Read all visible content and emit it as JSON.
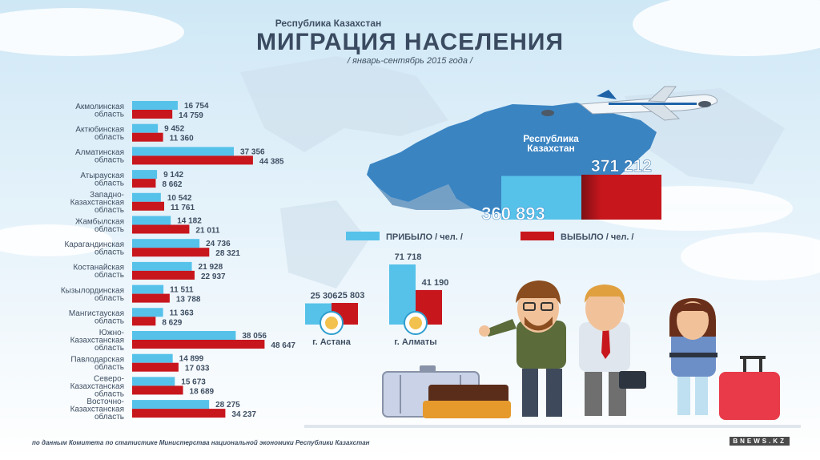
{
  "header": {
    "kicker": "Республика Казахстан",
    "title": "МИГРАЦИЯ НАСЕЛЕНИЯ",
    "subtitle": "/ январь-сентябрь 2015 года /"
  },
  "footnote": "по данным Комитета по статистике Министерства национальной экономики Республики Казахстан",
  "logo_text": "BNEWS.KZ",
  "colors": {
    "arrived": "#56c2ea",
    "departed": "#c8161d",
    "sky": "#dbeef8",
    "text": "#3f4f63"
  },
  "legend": {
    "arrived": "ПРИБЫЛО / чел. /",
    "departed": "ВЫБЫЛО / чел. /"
  },
  "chart_data": [
    {
      "type": "bar",
      "orientation": "horizontal",
      "categories": [
        [
          "Акмолинская",
          "область"
        ],
        [
          "Актюбинская",
          "область"
        ],
        [
          "Алматинская",
          "область"
        ],
        [
          "Атырауская",
          "область"
        ],
        [
          "Западно-",
          "Казахстанская",
          "область"
        ],
        [
          "Жамбылская",
          "область"
        ],
        [
          "Карагандинская",
          "область"
        ],
        [
          "Костанайская",
          "область"
        ],
        [
          "Кызылординская",
          "область"
        ],
        [
          "Мангистауская",
          "область"
        ],
        [
          "Южно-",
          "Казахстанская",
          "область"
        ],
        [
          "Павлодарская",
          "область"
        ],
        [
          "Северо-",
          "Казахстанская",
          "область"
        ],
        [
          "Восточно-",
          "Казахстанская",
          "область"
        ]
      ],
      "series": [
        {
          "name": "ПРИБЫЛО / чел. /",
          "values": [
            16754,
            9452,
            37356,
            9142,
            10542,
            14182,
            24736,
            21928,
            11511,
            11363,
            38056,
            14899,
            15673,
            28275
          ],
          "labels": [
            "16 754",
            "9 452",
            "37 356",
            "9 142",
            "10 542",
            "14 182",
            "24 736",
            "21 928",
            "11 511",
            "11 363",
            "38 056",
            "14 899",
            "15 673",
            "28 275"
          ]
        },
        {
          "name": "ВЫБЫЛО / чел. /",
          "values": [
            14759,
            11360,
            44385,
            8662,
            11761,
            21011,
            28321,
            22937,
            13788,
            8629,
            48647,
            17033,
            18689,
            34237
          ],
          "labels": [
            "14 759",
            "11 360",
            "44 385",
            "8 662",
            "11 761",
            "21 011",
            "28 321",
            "22 937",
            "13 788",
            "8 629",
            "48 647",
            "17 033",
            "18 689",
            "34 237"
          ]
        }
      ]
    },
    {
      "type": "bar",
      "orientation": "vertical",
      "categories": [
        "г. Астана",
        "г. Алматы"
      ],
      "series": [
        {
          "name": "ПРИБЫЛО / чел. /",
          "values": [
            25306,
            71718
          ],
          "labels": [
            "25 306",
            "71 718"
          ]
        },
        {
          "name": "ВЫБЫЛО / чел. /",
          "values": [
            25803,
            41190
          ],
          "labels": [
            "25 803",
            "41 190"
          ]
        }
      ]
    },
    {
      "type": "bar",
      "orientation": "vertical",
      "title": [
        "Республика",
        "Казахстан"
      ],
      "series": [
        {
          "name": "ПРИБЫЛО / чел. /",
          "values": [
            360893
          ],
          "labels": [
            "360 893"
          ]
        },
        {
          "name": "ВЫБЫЛО / чел. /",
          "values": [
            371212
          ],
          "labels": [
            "371 212"
          ]
        }
      ]
    }
  ]
}
